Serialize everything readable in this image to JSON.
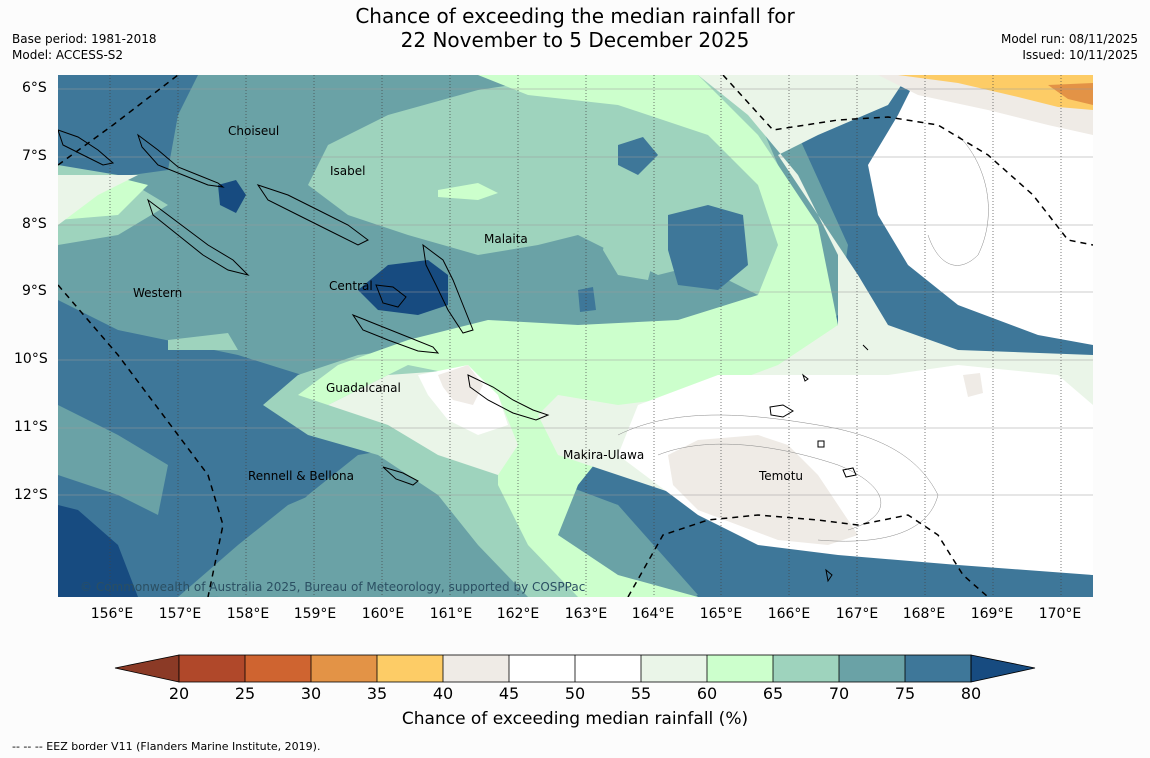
{
  "title_line1": "Chance of exceeding the median rainfall for",
  "title_line2": "22 November to 5 December 2025",
  "meta_left": {
    "base_period": "Base period: 1981-2018",
    "model": "Model: ACCESS-S2"
  },
  "meta_right": {
    "model_run": "Model run: 08/11/2025",
    "issued": "Issued: 10/11/2025"
  },
  "lat_labels": [
    "6°S",
    "7°S",
    "8°S",
    "9°S",
    "10°S",
    "11°S",
    "12°S"
  ],
  "lon_labels": [
    "156°E",
    "157°E",
    "158°E",
    "159°E",
    "160°E",
    "161°E",
    "162°E",
    "163°E",
    "164°E",
    "165°E",
    "166°E",
    "167°E",
    "168°E",
    "169°E",
    "170°E"
  ],
  "regions": [
    "Choiseul",
    "Isabel",
    "Malaita",
    "Western",
    "Central",
    "Guadalcanal",
    "Makira-Ulawa",
    "Rennell & Bellona",
    "Temotu"
  ],
  "copyright": "© Commonwealth of Australia 2025, Bureau of Meteorology, supported by COSPPac",
  "colorbar": {
    "label": "Chance of exceeding median rainfall (%)",
    "ticks": [
      "20",
      "25",
      "30",
      "35",
      "40",
      "45",
      "50",
      "55",
      "60",
      "65",
      "70",
      "75",
      "80"
    ],
    "colors": [
      "#8b3a26",
      "#b0482a",
      "#cf6430",
      "#e39346",
      "#fdcc66",
      "#efebe6",
      "#ffffff",
      "#ffffff",
      "#eaf5e8",
      "#ccffcc",
      "#9ed3bd",
      "#6aa2a6",
      "#3e7799",
      "#174b80"
    ]
  },
  "footnote": "--  --  -- EEZ border V11 (Flanders Marine Institute, 2019)."
}
